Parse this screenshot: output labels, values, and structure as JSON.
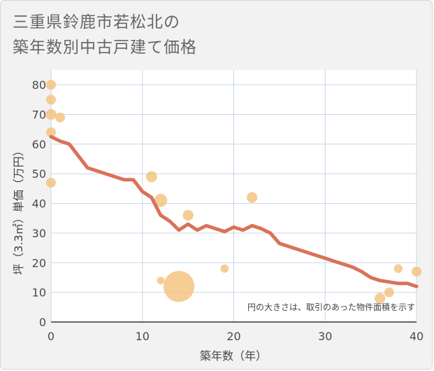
{
  "title_lines": [
    "三重県鈴鹿市若松北の",
    "築年数別中古戸建て価格"
  ],
  "colors": {
    "plot_bg": "#ffffff",
    "grid": "#c8d6e8",
    "line": "#d9725a",
    "bubble": "#f3c07a"
  },
  "chart_data": {
    "type": "scatter",
    "title": "三重県鈴鹿市若松北の築年数別中古戸建て価格",
    "xlabel": "築年数（年）",
    "ylabel": "坪（3.3㎡）単価（万円）",
    "xlim": [
      0,
      40
    ],
    "ylim": [
      0,
      85
    ],
    "xticks": [
      "0",
      "10",
      "20",
      "30",
      "40"
    ],
    "yticks": [
      "0",
      "10",
      "20",
      "30",
      "40",
      "50",
      "60",
      "70",
      "80"
    ],
    "grid": true,
    "annotation": "円の大きさは、取引のあった物件面積を示す",
    "scatter_points": [
      {
        "x": 0,
        "y": 80,
        "size": 1
      },
      {
        "x": 0,
        "y": 75,
        "size": 1
      },
      {
        "x": 0,
        "y": 70,
        "size": 1.2
      },
      {
        "x": 0,
        "y": 64,
        "size": 1
      },
      {
        "x": 0,
        "y": 47,
        "size": 1
      },
      {
        "x": 1,
        "y": 69,
        "size": 1
      },
      {
        "x": 11,
        "y": 49,
        "size": 1.3
      },
      {
        "x": 12,
        "y": 41,
        "size": 1.8
      },
      {
        "x": 12,
        "y": 14,
        "size": 0.6
      },
      {
        "x": 14,
        "y": 12,
        "size": 10
      },
      {
        "x": 15,
        "y": 36,
        "size": 1.2
      },
      {
        "x": 19,
        "y": 18,
        "size": 0.7
      },
      {
        "x": 22,
        "y": 42,
        "size": 1.2
      },
      {
        "x": 36,
        "y": 8,
        "size": 1.2
      },
      {
        "x": 37,
        "y": 10,
        "size": 1
      },
      {
        "x": 38,
        "y": 18,
        "size": 0.8
      },
      {
        "x": 40,
        "y": 17,
        "size": 1
      }
    ],
    "trend_line": {
      "x": [
        0,
        1,
        2,
        3,
        4,
        5,
        6,
        7,
        8,
        9,
        10,
        11,
        12,
        13,
        14,
        15,
        16,
        17,
        18,
        19,
        20,
        21,
        22,
        23,
        24,
        25,
        26,
        27,
        28,
        29,
        30,
        31,
        32,
        33,
        34,
        35,
        36,
        37,
        38,
        39,
        40
      ],
      "y": [
        62.5,
        61,
        60,
        56,
        52,
        51,
        50,
        49,
        48,
        48,
        44,
        42,
        36,
        34,
        31,
        33,
        31,
        32.5,
        31.5,
        30.5,
        32,
        31,
        32.5,
        31.5,
        30,
        26.5,
        25.5,
        24.5,
        23.5,
        22.5,
        21.5,
        20.5,
        19.5,
        18.5,
        17,
        15,
        14,
        13.5,
        13,
        13,
        12
      ]
    }
  }
}
